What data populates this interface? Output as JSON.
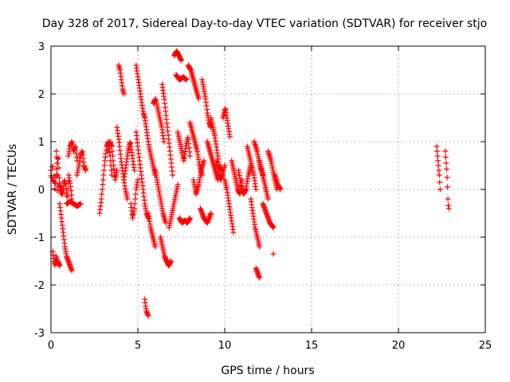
{
  "chart_data": {
    "type": "scatter",
    "title": "Day 328 of 2017, Sidereal Day-to-day VTEC variation (SDTVAR) for receiver stjo",
    "xlabel": "GPS time / hours",
    "ylabel": "SDTVAR / TECUs",
    "xlim": [
      0,
      25
    ],
    "ylim": [
      -3,
      3
    ],
    "xticks": [
      "0",
      "5",
      "10",
      "15",
      "20",
      "25"
    ],
    "yticks": [
      "-3",
      "-2",
      "-1",
      "0",
      "1",
      "2",
      "3"
    ],
    "grid": true,
    "marker": "plus",
    "color": "#ff0000",
    "segments": [
      {
        "x0": 0.0,
        "x1": 0.4,
        "y": [
          0.4,
          0.2,
          0.6,
          0.1,
          0.3,
          0.0,
          0.2,
          0.5,
          -0.1,
          0.3
        ]
      },
      {
        "x0": 0.1,
        "x1": 0.5,
        "y": [
          -1.3,
          -1.5,
          -1.6,
          -1.4,
          -1.5,
          -1.55,
          -1.6
        ]
      },
      {
        "x0": 0.3,
        "x1": 0.6,
        "y": [
          0.8,
          0.5,
          0.7,
          0.2,
          0.0,
          -0.1
        ]
      },
      {
        "x0": 0.5,
        "x1": 1.2,
        "y": [
          0.1,
          0.0,
          -0.1,
          0.2,
          0.1,
          -0.2,
          0.3,
          0.1,
          -0.2
        ]
      },
      {
        "x0": 0.5,
        "x1": 1.2,
        "y": [
          -0.3,
          -0.6,
          -0.9,
          -1.2,
          -1.4,
          -1.5,
          -1.6,
          -1.7
        ]
      },
      {
        "x0": 1.0,
        "x1": 1.5,
        "y": [
          0.7,
          0.9,
          1.0,
          0.8,
          0.9,
          0.6
        ]
      },
      {
        "x0": 0.9,
        "x1": 1.7,
        "y": [
          -0.3,
          -0.25,
          -0.3,
          -0.35,
          -0.3
        ]
      },
      {
        "x0": 1.5,
        "x1": 2.0,
        "y": [
          0.3,
          0.5,
          0.7,
          0.8,
          0.5,
          0.4
        ]
      },
      {
        "x0": 2.8,
        "x1": 3.5,
        "y": [
          -0.5,
          -0.2,
          0.2,
          0.6,
          0.9,
          1.0,
          0.7,
          0.3
        ]
      },
      {
        "x0": 3.3,
        "x1": 3.8,
        "y": [
          0.8,
          1.0,
          0.9,
          0.5,
          0.2,
          0.4
        ]
      },
      {
        "x0": 3.9,
        "x1": 4.2,
        "y": [
          2.6,
          2.5,
          2.3,
          2.1,
          2.0
        ]
      },
      {
        "x0": 3.8,
        "x1": 4.4,
        "y": [
          1.3,
          1.0,
          0.6,
          0.3,
          0.0,
          -0.2
        ]
      },
      {
        "x0": 4.2,
        "x1": 4.8,
        "y": [
          0.2,
          0.5,
          0.8,
          1.0,
          0.7,
          0.4
        ]
      },
      {
        "x0": 4.6,
        "x1": 5.0,
        "y": [
          -0.3,
          -0.6,
          -0.4,
          0.0,
          0.2
        ]
      },
      {
        "x0": 4.9,
        "x1": 5.4,
        "y": [
          2.6,
          2.4,
          2.2,
          2.0,
          1.8,
          1.6,
          1.5
        ]
      },
      {
        "x0": 4.9,
        "x1": 5.6,
        "y": [
          1.2,
          0.9,
          0.6,
          0.3,
          0.0,
          -0.3,
          -0.5,
          -0.6
        ]
      },
      {
        "x0": 5.4,
        "x1": 5.6,
        "y": [
          -2.3,
          -2.45,
          -2.55,
          -2.6,
          -2.65
        ]
      },
      {
        "x0": 5.4,
        "x1": 6.0,
        "y": [
          1.5,
          1.2,
          0.9,
          0.7,
          0.5,
          0.3
        ]
      },
      {
        "x0": 5.6,
        "x1": 6.0,
        "y": [
          -0.5,
          -0.8,
          -1.0,
          -1.2
        ]
      },
      {
        "x0": 5.9,
        "x1": 6.5,
        "y": [
          1.8,
          1.9,
          1.7,
          1.5,
          1.3,
          1.0
        ]
      },
      {
        "x0": 6.0,
        "x1": 6.6,
        "y": [
          0.4,
          0.1,
          -0.2,
          -0.5,
          -0.7
        ]
      },
      {
        "x0": 6.3,
        "x1": 6.9,
        "y": [
          -1.0,
          -1.2,
          -1.4,
          -1.5,
          -1.6,
          -1.5
        ]
      },
      {
        "x0": 6.4,
        "x1": 7.0,
        "y": [
          2.2,
          1.9,
          1.5,
          1.1,
          0.7,
          0.3
        ]
      },
      {
        "x0": 6.8,
        "x1": 7.3,
        "y": [
          -0.8,
          -0.5,
          -0.2,
          0.1
        ]
      },
      {
        "x0": 7.1,
        "x1": 7.5,
        "y": [
          2.8,
          2.9,
          2.8,
          2.7
        ]
      },
      {
        "x0": 7.2,
        "x1": 7.8,
        "y": [
          2.4,
          2.3,
          2.35,
          2.3
        ]
      },
      {
        "x0": 7.3,
        "x1": 8.0,
        "y": [
          1.2,
          1.0,
          0.8,
          0.6,
          0.9,
          1.1,
          0.7
        ]
      },
      {
        "x0": 7.4,
        "x1": 8.0,
        "y": [
          -0.6,
          -0.7,
          -0.65,
          -0.7,
          -0.6
        ]
      },
      {
        "x0": 7.9,
        "x1": 8.5,
        "y": [
          2.6,
          2.5,
          2.3,
          2.1,
          1.9
        ]
      },
      {
        "x0": 8.0,
        "x1": 8.7,
        "y": [
          1.4,
          1.2,
          1.0,
          0.8,
          0.5,
          0.3
        ]
      },
      {
        "x0": 8.2,
        "x1": 8.8,
        "y": [
          0.2,
          -0.1,
          0.1,
          0.4,
          0.6
        ]
      },
      {
        "x0": 8.7,
        "x1": 9.2,
        "y": [
          2.3,
          2.1,
          1.9,
          1.6,
          1.4,
          1.3
        ]
      },
      {
        "x0": 8.6,
        "x1": 9.2,
        "y": [
          -0.4,
          -0.6,
          -0.7,
          -0.5
        ]
      },
      {
        "x0": 9.0,
        "x1": 9.6,
        "y": [
          1.0,
          0.8,
          0.6,
          0.4,
          0.2
        ]
      },
      {
        "x0": 9.2,
        "x1": 9.8,
        "y": [
          1.5,
          1.3,
          1.1,
          0.8,
          0.5,
          0.4
        ]
      },
      {
        "x0": 9.5,
        "x1": 10.0,
        "y": [
          0.6,
          0.4,
          0.2,
          0.3,
          0.5
        ]
      },
      {
        "x0": 9.9,
        "x1": 10.3,
        "y": [
          1.5,
          1.7,
          1.4,
          1.1
        ]
      },
      {
        "x0": 10.0,
        "x1": 10.5,
        "y": [
          0.2,
          0.0,
          -0.3,
          -0.6,
          -0.9
        ]
      },
      {
        "x0": 10.4,
        "x1": 11.0,
        "y": [
          0.6,
          0.4,
          0.2,
          0.0,
          -0.1,
          0.2
        ]
      },
      {
        "x0": 10.8,
        "x1": 11.5,
        "y": [
          0.4,
          0.1,
          -0.1,
          0.0,
          0.3,
          0.5
        ]
      },
      {
        "x0": 11.3,
        "x1": 11.8,
        "y": [
          0.9,
          0.7,
          0.5,
          0.3,
          0.0
        ]
      },
      {
        "x0": 11.5,
        "x1": 12.0,
        "y": [
          -0.2,
          -0.5,
          -0.8,
          -1.0,
          -1.2
        ]
      },
      {
        "x0": 11.7,
        "x1": 12.2,
        "y": [
          1.0,
          0.8,
          0.5,
          0.3
        ]
      },
      {
        "x0": 11.8,
        "x1": 12.0,
        "y": [
          -1.65,
          -1.75,
          -1.85
        ]
      },
      {
        "x0": 12.0,
        "x1": 12.5,
        "y": [
          0.6,
          0.4,
          0.2,
          0.0,
          -0.2
        ]
      },
      {
        "x0": 12.2,
        "x1": 12.8,
        "y": [
          -0.3,
          -0.5,
          -0.7,
          -0.8
        ]
      },
      {
        "x0": 12.5,
        "x1": 13.0,
        "y": [
          0.8,
          0.6,
          0.3,
          0.0
        ]
      },
      {
        "x0": 12.9,
        "x1": 13.2,
        "y": [
          0.3,
          0.1,
          0.0
        ]
      },
      {
        "x0": 12.8,
        "x1": 12.9,
        "y": [
          -1.35
        ]
      },
      {
        "x0": 22.2,
        "x1": 22.4,
        "y": [
          0.9,
          0.7,
          0.5,
          0.3,
          0.0
        ]
      },
      {
        "x0": 22.7,
        "x1": 22.9,
        "y": [
          0.8,
          0.6,
          0.4,
          0.1,
          -0.3,
          -0.4
        ]
      }
    ]
  }
}
